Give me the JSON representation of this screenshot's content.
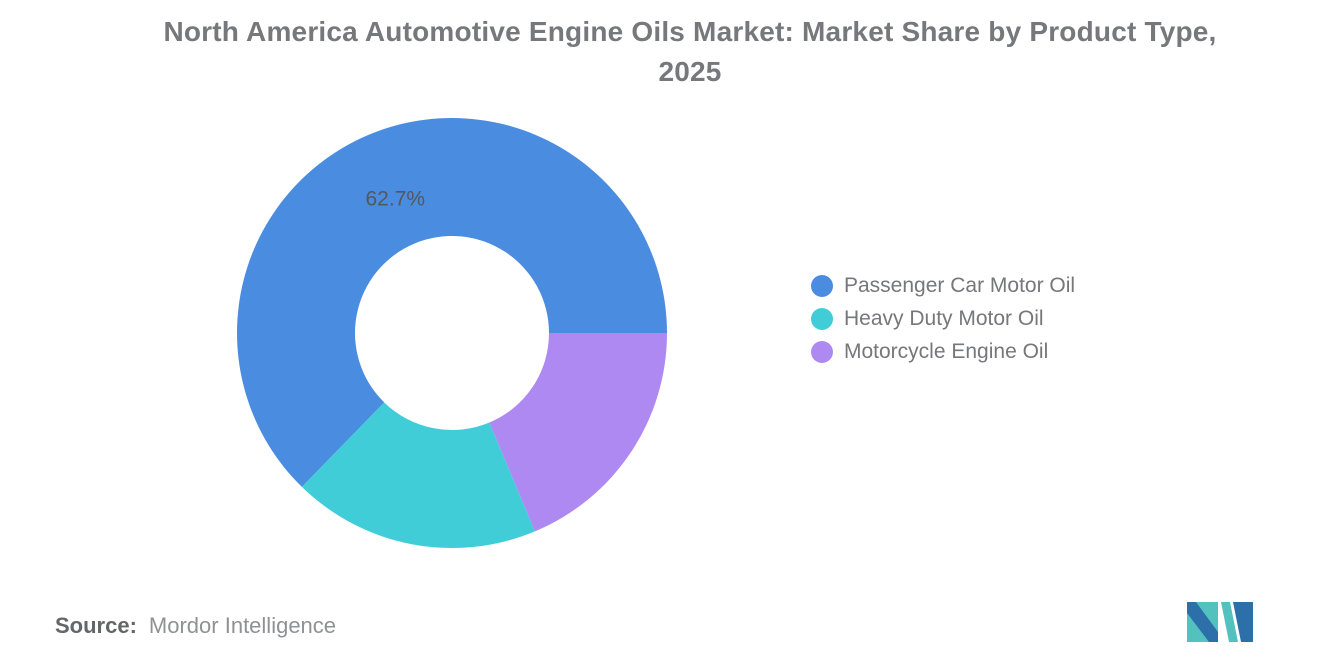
{
  "title": {
    "line1": "North America Automotive Engine Oils Market: Market Share by Product Type,",
    "line2": "2025"
  },
  "chart_data": {
    "type": "pie",
    "variant": "donut",
    "title": "North America Automotive Engine Oils Market: Market Share by Product Type, 2025",
    "categories": [
      "Passenger Car Motor Oil",
      "Heavy Duty Motor Oil",
      "Motorcycle Engine Oil"
    ],
    "values": [
      62.7,
      18.6,
      18.7
    ],
    "colors": [
      "#4A8CE0",
      "#41CDD8",
      "#AE89F2"
    ],
    "data_labels": [
      "62.7%",
      "",
      ""
    ],
    "start_angle_deg": 90,
    "direction": "counterclockwise",
    "inner_radius_ratio": 0.45,
    "legend_position": "right"
  },
  "source": {
    "prefix": "Source:",
    "name": "Mordor Intelligence"
  },
  "logo": {
    "name": "mordor-intelligence-logo",
    "teal": "#53C2BE",
    "blue": "#2C6FA9"
  }
}
